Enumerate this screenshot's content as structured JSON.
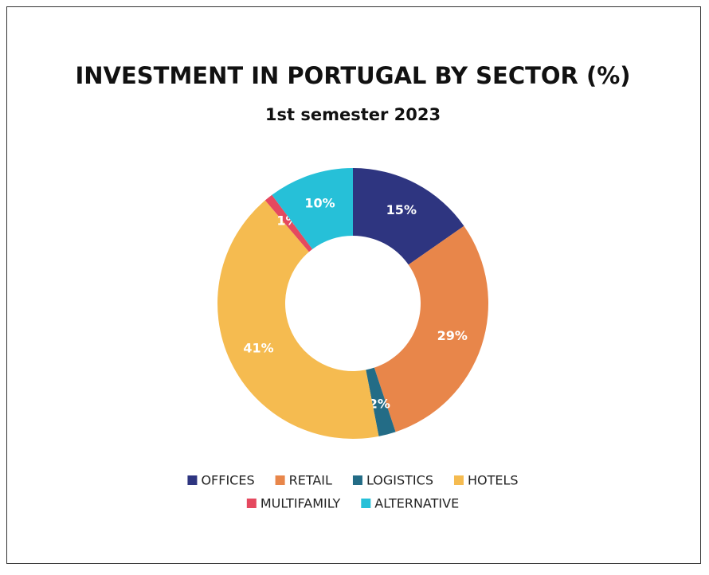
{
  "chart_data": {
    "type": "donut",
    "title": "INVESTMENT IN PORTUGAL BY SECTOR (%)",
    "subtitle": "1st semester 2023",
    "categories": [
      "OFFICES",
      "RETAIL",
      "LOGISTICS",
      "HOTELS",
      "MULTIFAMILY",
      "ALTERNATIVE"
    ],
    "values": [
      15,
      29,
      2,
      41,
      1,
      10
    ],
    "value_labels": [
      "15%",
      "29%",
      "2%",
      "41%",
      "1%",
      "10%"
    ],
    "colors": [
      "#2e3580",
      "#e8864a",
      "#236c86",
      "#f5bb50",
      "#e5495f",
      "#26c0d8"
    ],
    "legend": "bottom"
  }
}
